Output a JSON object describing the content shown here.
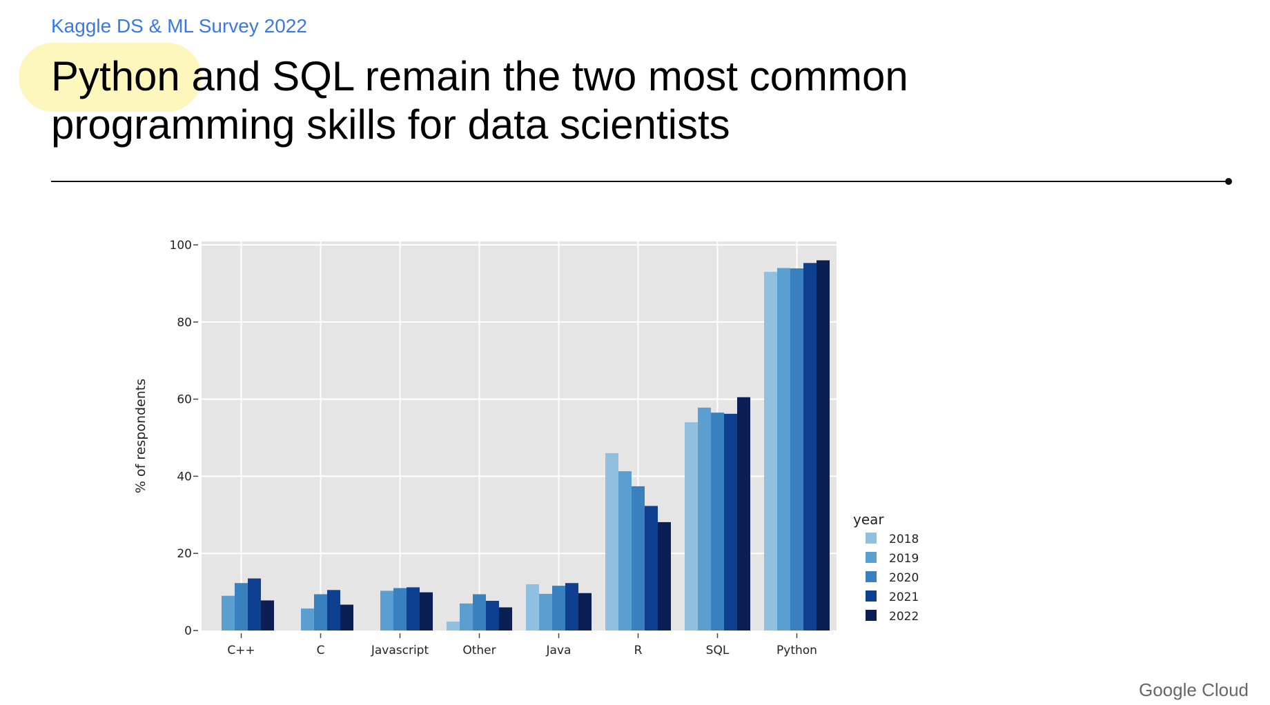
{
  "header": {
    "eyebrow": "Kaggle DS & ML Survey 2022",
    "title_line1_highlight": "Python",
    "title_line1_rest": " and SQL remain the two most common",
    "title_line2": "programming skills for data scientists"
  },
  "footer": {
    "brand": "Google Cloud"
  },
  "chart_data": {
    "type": "bar",
    "title": "",
    "xlabel": "",
    "ylabel": "% of respondents",
    "ylim": [
      0,
      100
    ],
    "yticks": [
      0,
      20,
      40,
      60,
      80,
      100
    ],
    "grid": true,
    "legend_title": "year",
    "legend_position": "right",
    "categories": [
      "C++",
      "C",
      "Javascript",
      "Other",
      "Java",
      "R",
      "SQL",
      "Python"
    ],
    "series": [
      {
        "name": "2018",
        "color": "#90bfdf",
        "values": [
          null,
          null,
          null,
          2.3,
          12.0,
          46.0,
          54.0,
          93.0
        ]
      },
      {
        "name": "2019",
        "color": "#5b9fd0",
        "values": [
          9.0,
          5.7,
          10.3,
          7.0,
          9.5,
          41.3,
          57.8,
          94.0
        ]
      },
      {
        "name": "2020",
        "color": "#3980bf",
        "values": [
          12.3,
          9.4,
          11.0,
          9.4,
          11.6,
          37.4,
          56.5,
          93.9
        ]
      },
      {
        "name": "2021",
        "color": "#0e3f91",
        "values": [
          13.5,
          10.5,
          11.2,
          7.7,
          12.3,
          32.3,
          56.2,
          95.3
        ]
      },
      {
        "name": "2022",
        "color": "#0b1f54",
        "values": [
          7.8,
          6.7,
          9.9,
          6.0,
          9.7,
          28.1,
          60.5,
          96.0
        ]
      }
    ]
  }
}
